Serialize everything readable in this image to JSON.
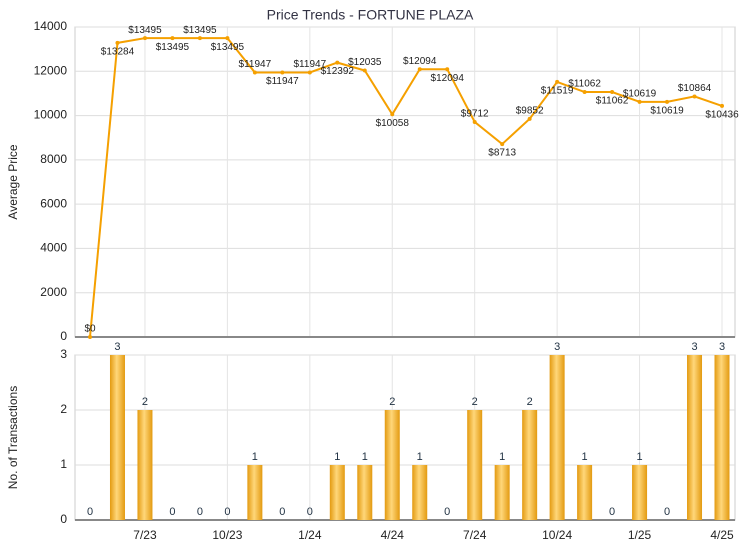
{
  "chart_data": [
    {
      "type": "line",
      "title": "Price Trends - FORTUNE PLAZA",
      "y_label": "Average Price",
      "categories": [
        null,
        null,
        "7/23",
        null,
        null,
        "10/23",
        null,
        null,
        "1/24",
        null,
        null,
        "4/24",
        null,
        null,
        "7/24",
        null,
        null,
        "10/24",
        null,
        null,
        "1/25",
        null,
        null,
        "4/25"
      ],
      "values": [
        0,
        13284,
        13495,
        13495,
        13495,
        13495,
        11947,
        11947,
        11947,
        12392,
        12035,
        10058,
        12094,
        12094,
        9712,
        8713,
        9852,
        11519,
        11062,
        11062,
        10619,
        10619,
        10864,
        10436
      ],
      "value_labels": [
        "$0",
        "$13284",
        "$13495",
        "$13495",
        "$13495",
        "$13495",
        "$11947",
        "$11947",
        "$11947",
        "$12392",
        "$12035",
        "$10058",
        "$12094",
        "$12094",
        "$9712",
        "$8713",
        "$9852",
        "$11519",
        "$11062",
        "$11062",
        "$10619",
        "$10619",
        "$10864",
        "$10436"
      ],
      "color": "#f5a000",
      "ylim": [
        0,
        14000
      ],
      "yticks": [
        0,
        2000,
        4000,
        6000,
        8000,
        10000,
        12000,
        14000
      ],
      "grid": true
    },
    {
      "type": "bar",
      "y_label": "No. of Transactions",
      "categories": [
        null,
        null,
        "7/23",
        null,
        null,
        "10/23",
        null,
        null,
        "1/24",
        null,
        null,
        "4/24",
        null,
        null,
        "7/24",
        null,
        null,
        "10/24",
        null,
        null,
        "1/25",
        null,
        null,
        "4/25"
      ],
      "values": [
        0,
        3,
        2,
        0,
        0,
        0,
        1,
        0,
        0,
        1,
        1,
        2,
        1,
        0,
        2,
        1,
        2,
        3,
        1,
        0,
        1,
        0,
        3,
        3
      ],
      "color": "#f0a818",
      "ylim": [
        0,
        3
      ],
      "yticks": [
        0,
        1,
        2,
        3
      ],
      "grid": true
    }
  ]
}
